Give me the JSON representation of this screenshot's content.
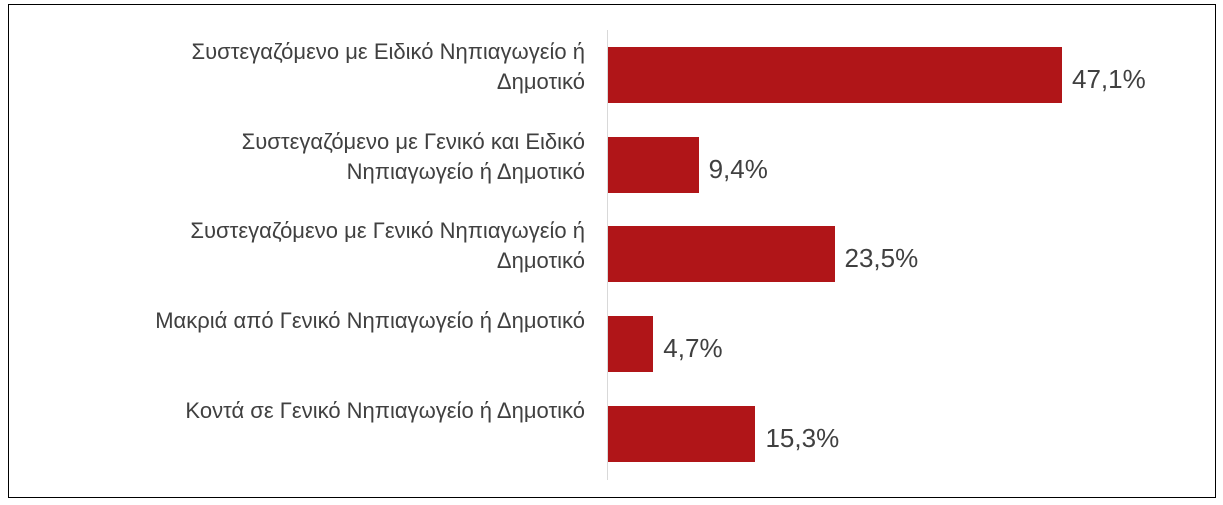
{
  "chart_data": {
    "type": "bar",
    "orientation": "horizontal",
    "categories": [
      "Συστεγαζόμενο με Ειδικό Νηπιαγωγείο ή\nΔημοτικό",
      "Συστεγαζόμενο με Γενικό και Ειδικό\nΝηπιαγωγείο ή Δημοτικό",
      "Συστεγαζόμενο με Γενικό Νηπιαγωγείο ή\nΔημοτικό",
      "Μακριά από Γενικό Νηπιαγωγείο ή Δημοτικό",
      "Κοντά σε Γενικό Νηπιαγωγείο ή Δημοτικό"
    ],
    "values": [
      47.1,
      9.4,
      23.5,
      4.7,
      15.3
    ],
    "value_labels": [
      "47,1%",
      "9,4%",
      "23,5%",
      "4,7%",
      "15,3%"
    ],
    "color": "#b01518"
  }
}
